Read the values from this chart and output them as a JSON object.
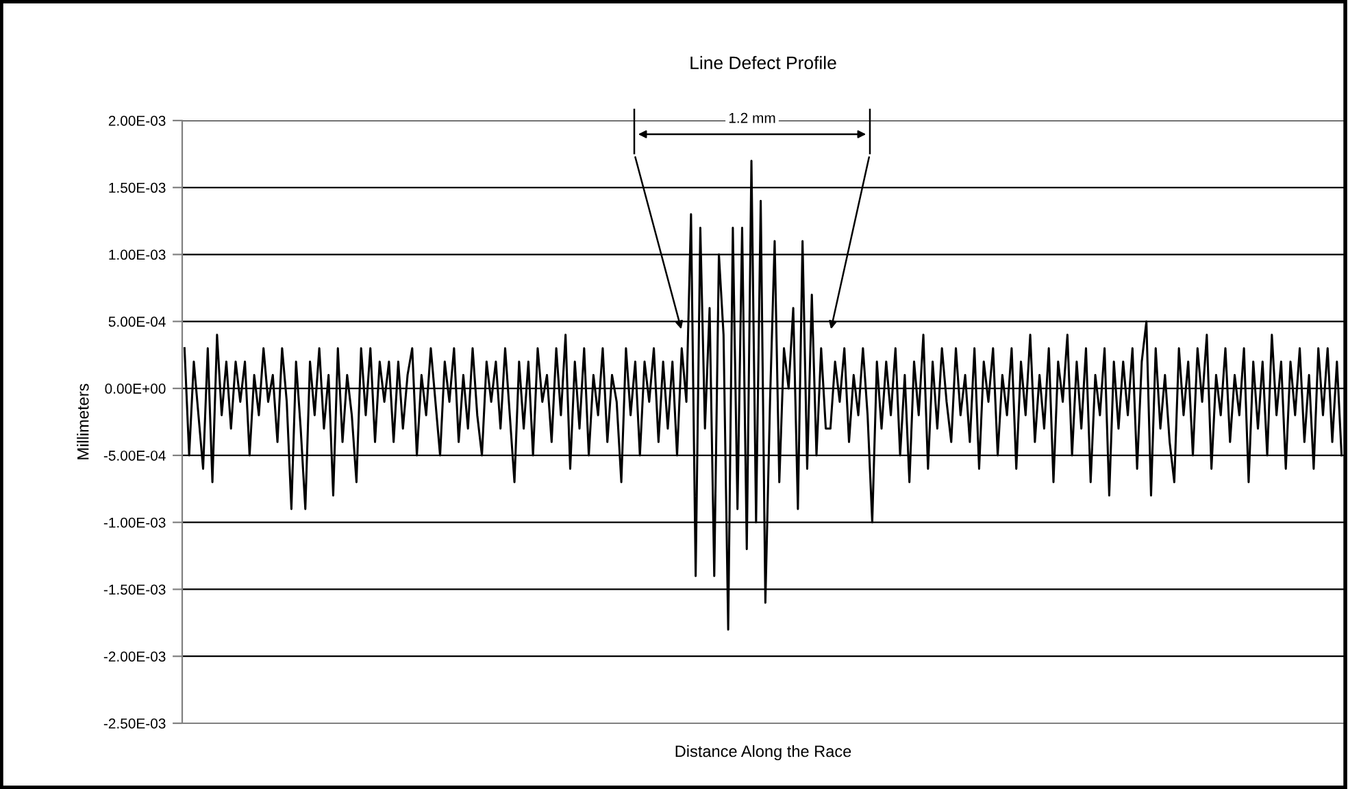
{
  "chart_data": {
    "type": "line",
    "title": "Line Defect Profile",
    "xlabel": "Distance Along the Race",
    "ylabel": "Millimeters",
    "annotations": [
      "1.2 mm"
    ],
    "categories": [
      null,
      null,
      null,
      null,
      null,
      null,
      null,
      null,
      null,
      null,
      null,
      null,
      null,
      null,
      null,
      null,
      null,
      null,
      null,
      null,
      null,
      null,
      null,
      null,
      null,
      null,
      null,
      null,
      null,
      null,
      null,
      null,
      null,
      null,
      null,
      null,
      null,
      null,
      null,
      null,
      null,
      null,
      null,
      null,
      null,
      null,
      null,
      null,
      null,
      null,
      null,
      null,
      null,
      null,
      null,
      null,
      null,
      null,
      null,
      null,
      null,
      null,
      null,
      null,
      null,
      null,
      null,
      null,
      null,
      null,
      null,
      null,
      null,
      null,
      null,
      null,
      null,
      null,
      null,
      null,
      null,
      null,
      null,
      null,
      null,
      null,
      null,
      null,
      null,
      null,
      null,
      null,
      null,
      null,
      null,
      null,
      null,
      null,
      null,
      null,
      null,
      null,
      null,
      null,
      null,
      null,
      null,
      null,
      null,
      null,
      null,
      null,
      null,
      null,
      null,
      null,
      null,
      null,
      null,
      null,
      null,
      null,
      null,
      null,
      null,
      null,
      null,
      null,
      null,
      null,
      null,
      null,
      null,
      null,
      null,
      null,
      null,
      null,
      null,
      null,
      null,
      null,
      null,
      null,
      null,
      null,
      null,
      null,
      null,
      null,
      null,
      null,
      null,
      null,
      null,
      null,
      null,
      null,
      null,
      null,
      null,
      null,
      null,
      null,
      null,
      null,
      null,
      null,
      null,
      null,
      null,
      null,
      null,
      null,
      null,
      null,
      null,
      null,
      null,
      null,
      null,
      null,
      null,
      null,
      null,
      null,
      null,
      null,
      null,
      null,
      null,
      null,
      null,
      null,
      null,
      null,
      null,
      null,
      null,
      null,
      null,
      null,
      null,
      null,
      null,
      null,
      null,
      null,
      null,
      null,
      null,
      null,
      null,
      null,
      null,
      null,
      null,
      null,
      null,
      null,
      null,
      null,
      null,
      null,
      null,
      null,
      null,
      null,
      null,
      null,
      null,
      null,
      null,
      null,
      null,
      null,
      null,
      null,
      null,
      null,
      null,
      null,
      null,
      null,
      null,
      null,
      null,
      null,
      null,
      null
    ],
    "series": [
      {
        "color": "#000000",
        "values": [
          0.0003,
          -0.0005,
          0.0002,
          -0.0002,
          -0.0006,
          0.0003,
          -0.0007,
          0.0004,
          -0.0002,
          0.0002,
          -0.0003,
          0.0002,
          -0.0001,
          0.0002,
          -0.0005,
          0.0001,
          -0.0002,
          0.0003,
          -0.0001,
          0.0001,
          -0.0004,
          0.0003,
          -0.0001,
          -0.0009,
          0.0002,
          -0.0003,
          -0.0009,
          0.0002,
          -0.0002,
          0.0003,
          -0.0003,
          0.0001,
          -0.0008,
          0.0003,
          -0.0004,
          0.0001,
          -0.0002,
          -0.0007,
          0.0003,
          -0.0002,
          0.0003,
          -0.0004,
          0.0002,
          -0.0001,
          0.0002,
          -0.0004,
          0.0002,
          -0.0003,
          0.0001,
          0.0003,
          -0.0005,
          0.0001,
          -0.0002,
          0.0003,
          -0.0001,
          -0.0005,
          0.0002,
          -0.0001,
          0.0003,
          -0.0004,
          0.0001,
          -0.0003,
          0.0003,
          -0.0002,
          -0.0005,
          0.0002,
          -0.0001,
          0.0002,
          -0.0003,
          0.0003,
          -0.0002,
          -0.0007,
          0.0002,
          -0.0003,
          0.0002,
          -0.0005,
          0.0003,
          -0.0001,
          0.0001,
          -0.0004,
          0.0003,
          -0.0002,
          0.0004,
          -0.0006,
          0.0002,
          -0.0003,
          0.0003,
          -0.0005,
          0.0001,
          -0.0002,
          0.0003,
          -0.0004,
          0.0001,
          -0.0001,
          -0.0007,
          0.0003,
          -0.0002,
          0.0002,
          -0.0005,
          0.0002,
          -0.0001,
          0.0003,
          -0.0004,
          0.0002,
          -0.0003,
          0.0002,
          -0.0005,
          0.0003,
          -0.0001,
          0.0013,
          -0.0014,
          0.0012,
          -0.0003,
          0.0006,
          -0.0014,
          0.001,
          0.0004,
          -0.0018,
          0.0012,
          -0.0009,
          0.0012,
          -0.0012,
          0.0017,
          -0.001,
          0.0014,
          -0.0016,
          -0.0001,
          0.0011,
          -0.0007,
          0.0003,
          0,
          0.0006,
          -0.0009,
          0.0011,
          -0.0006,
          0.0007,
          -0.0005,
          0.0003,
          -0.0003,
          -0.0003,
          0.0002,
          -0.0001,
          0.0003,
          -0.0004,
          0.0001,
          -0.0002,
          0.0003,
          -0.0002,
          -0.001,
          0.0002,
          -0.0003,
          0.0002,
          -0.0002,
          0.0003,
          -0.0005,
          0.0001,
          -0.0007,
          0.0002,
          -0.0002,
          0.0004,
          -0.0006,
          0.0002,
          -0.0003,
          0.0003,
          -0.0001,
          -0.0004,
          0.0003,
          -0.0002,
          0.0001,
          -0.0004,
          0.0003,
          -0.0006,
          0.0002,
          -0.0001,
          0.0003,
          -0.0005,
          0.0001,
          -0.0002,
          0.0003,
          -0.0006,
          0.0002,
          -0.0002,
          0.0004,
          -0.0004,
          0.0001,
          -0.0003,
          0.0003,
          -0.0007,
          0.0002,
          -0.0001,
          0.0004,
          -0.0005,
          0.0002,
          -0.0003,
          0.0003,
          -0.0007,
          0.0001,
          -0.0002,
          0.0003,
          -0.0008,
          0.0002,
          -0.0003,
          0.0002,
          -0.0002,
          0.0003,
          -0.0006,
          0.0002,
          0.0005,
          -0.0008,
          0.0003,
          -0.0003,
          0.0001,
          -0.0004,
          -0.0007,
          0.0003,
          -0.0002,
          0.0002,
          -0.0005,
          0.0003,
          -0.0001,
          0.0004,
          -0.0006,
          0.0001,
          -0.0002,
          0.0003,
          -0.0004,
          0.0001,
          -0.0002,
          0.0003,
          -0.0007,
          0.0002,
          -0.0003,
          0.0002,
          -0.0005,
          0.0004,
          -0.0002,
          0.0002,
          -0.0006,
          0.0002,
          -0.0002,
          0.0003,
          -0.0004,
          0.0001,
          -0.0006,
          0.0003,
          -0.0002,
          0.0003,
          -0.0004,
          0.0002,
          -0.0005
        ]
      }
    ],
    "ylim": [
      -0.0025,
      0.002
    ],
    "yticks": [
      {
        "value": -0.0025,
        "label": "-2.50E-03"
      },
      {
        "value": -0.002,
        "label": "-2.00E-03"
      },
      {
        "value": -0.0015,
        "label": "-1.50E-03"
      },
      {
        "value": -0.001,
        "label": "-1.00E-03"
      },
      {
        "value": -0.0005,
        "label": "-5.00E-04"
      },
      {
        "value": 0,
        "label": "0.00E+00"
      },
      {
        "value": 0.0005,
        "label": "5.00E-04"
      },
      {
        "value": 0.001,
        "label": "1.00E-03"
      },
      {
        "value": 0.0015,
        "label": "1.50E-03"
      },
      {
        "value": 0.002,
        "label": "2.00E-03"
      }
    ],
    "grid": "y",
    "marker": "none",
    "line_style": "solid"
  }
}
